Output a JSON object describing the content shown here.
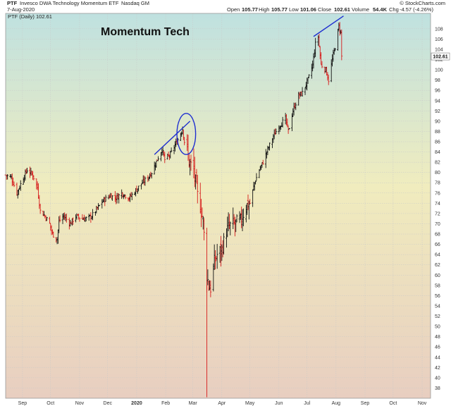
{
  "header": {
    "symbol": "PTF",
    "description": "Invesco DWA Technology Momentum ETF",
    "exchange": "Nasdaq GM",
    "date": "7-Aug-2020",
    "source": "© StockCharts.com",
    "open_label": "Open",
    "open": "105.77",
    "high_label": "High",
    "high": "105.77",
    "low_label": "Low",
    "low": "101.06",
    "close_label": "Close",
    "close": "102.61",
    "volume_label": "Volume",
    "volume": "54.4K",
    "chg_label": "Chg",
    "chg": "-4.57 (-4.26%)",
    "series_label": "PTF (Daily) 102.61"
  },
  "annotation": "Momentum Tech",
  "last_price_badge": "102.61",
  "colors": {
    "up": "#111111",
    "down": "#d61a1a",
    "trendline": "#1f2fd0",
    "bg_top": "#bfe1e0",
    "bg_mid": "#f0ecbe",
    "bg_bottom": "#e8cec0"
  },
  "chart_data": {
    "type": "ohlc",
    "ylim": [
      36,
      111
    ],
    "yticks": [
      38,
      40,
      42,
      44,
      46,
      48,
      50,
      52,
      54,
      56,
      58,
      60,
      62,
      64,
      66,
      68,
      70,
      72,
      74,
      76,
      78,
      80,
      82,
      84,
      86,
      88,
      90,
      92,
      94,
      96,
      98,
      100,
      102,
      104,
      106,
      108
    ],
    "xlim": [
      "2019-08-14",
      "2020-11-10"
    ],
    "grid": true,
    "xticks": [
      {
        "date": "2019-09-01",
        "label": "Sep",
        "bold": false
      },
      {
        "date": "2019-10-01",
        "label": "Oct",
        "bold": false
      },
      {
        "date": "2019-11-01",
        "label": "Nov",
        "bold": false
      },
      {
        "date": "2019-12-01",
        "label": "Dec",
        "bold": false
      },
      {
        "date": "2020-01-01",
        "label": "2020",
        "bold": true
      },
      {
        "date": "2020-02-01",
        "label": "Feb",
        "bold": false
      },
      {
        "date": "2020-03-01",
        "label": "Mar",
        "bold": false
      },
      {
        "date": "2020-04-01",
        "label": "Apr",
        "bold": false
      },
      {
        "date": "2020-05-01",
        "label": "May",
        "bold": false
      },
      {
        "date": "2020-06-01",
        "label": "Jun",
        "bold": false
      },
      {
        "date": "2020-07-01",
        "label": "Jul",
        "bold": false
      },
      {
        "date": "2020-08-01",
        "label": "Aug",
        "bold": false
      },
      {
        "date": "2020-09-01",
        "label": "Sep",
        "bold": false
      },
      {
        "date": "2020-10-01",
        "label": "Oct",
        "bold": false
      },
      {
        "date": "2020-11-01",
        "label": "Nov",
        "bold": false
      }
    ],
    "close_path": [
      [
        "2019-08-14",
        79.5
      ],
      [
        "2019-08-20",
        79.0
      ],
      [
        "2019-08-26",
        76.0
      ],
      [
        "2019-09-02",
        79.0
      ],
      [
        "2019-09-06",
        80.5
      ],
      [
        "2019-09-12",
        79.5
      ],
      [
        "2019-09-17",
        77.0
      ],
      [
        "2019-09-20",
        72.5
      ],
      [
        "2019-09-25",
        71.5
      ],
      [
        "2019-09-30",
        70.0
      ],
      [
        "2019-10-03",
        68.0
      ],
      [
        "2019-10-08",
        67.0
      ],
      [
        "2019-10-10",
        70.5
      ],
      [
        "2019-10-15",
        71.5
      ],
      [
        "2019-10-22",
        70.0
      ],
      [
        "2019-10-28",
        71.5
      ],
      [
        "2019-11-04",
        71.0
      ],
      [
        "2019-11-08",
        71.0
      ],
      [
        "2019-11-14",
        71.5
      ],
      [
        "2019-11-20",
        73.0
      ],
      [
        "2019-11-26",
        74.5
      ],
      [
        "2019-12-04",
        75.5
      ],
      [
        "2019-12-10",
        75.0
      ],
      [
        "2019-12-16",
        76.0
      ],
      [
        "2019-12-24",
        75.0
      ],
      [
        "2019-12-31",
        76.5
      ],
      [
        "2020-01-07",
        78.0
      ],
      [
        "2020-01-13",
        79.0
      ],
      [
        "2020-01-17",
        80.0
      ],
      [
        "2020-01-23",
        82.5
      ],
      [
        "2020-01-28",
        84.5
      ],
      [
        "2020-01-31",
        82.5
      ],
      [
        "2020-02-06",
        83.5
      ],
      [
        "2020-02-10",
        85.0
      ],
      [
        "2020-02-13",
        86.0
      ],
      [
        "2020-02-19",
        88.5
      ],
      [
        "2020-02-21",
        86.0
      ],
      [
        "2020-02-24",
        84.5
      ],
      [
        "2020-02-26",
        82.0
      ],
      [
        "2020-03-02",
        80.5
      ],
      [
        "2020-03-06",
        75.5
      ],
      [
        "2020-03-09",
        73.5
      ],
      [
        "2020-03-12",
        70.5
      ],
      [
        "2020-03-16",
        60.0
      ],
      [
        "2020-03-18",
        58.0
      ],
      [
        "2020-03-20",
        57.5
      ],
      [
        "2020-03-24",
        62.5
      ],
      [
        "2020-03-27",
        64.0
      ],
      [
        "2020-04-01",
        65.0
      ],
      [
        "2020-04-06",
        68.5
      ],
      [
        "2020-04-09",
        69.5
      ],
      [
        "2020-04-15",
        70.0
      ],
      [
        "2020-04-21",
        70.5
      ],
      [
        "2020-04-27",
        73.5
      ],
      [
        "2020-05-01",
        74.0
      ],
      [
        "2020-05-06",
        78.0
      ],
      [
        "2020-05-11",
        80.5
      ],
      [
        "2020-05-15",
        82.0
      ],
      [
        "2020-05-20",
        84.5
      ],
      [
        "2020-05-26",
        87.0
      ],
      [
        "2020-06-01",
        89.0
      ],
      [
        "2020-06-08",
        90.5
      ],
      [
        "2020-06-11",
        88.0
      ],
      [
        "2020-06-16",
        92.0
      ],
      [
        "2020-06-22",
        95.0
      ],
      [
        "2020-06-26",
        95.5
      ],
      [
        "2020-07-02",
        98.0
      ],
      [
        "2020-07-07",
        101.0
      ],
      [
        "2020-07-10",
        105.0
      ],
      [
        "2020-07-13",
        106.5
      ],
      [
        "2020-07-16",
        101.0
      ],
      [
        "2020-07-21",
        100.0
      ],
      [
        "2020-07-24",
        98.0
      ],
      [
        "2020-07-28",
        102.0
      ],
      [
        "2020-07-31",
        104.5
      ],
      [
        "2020-08-04",
        108.5
      ],
      [
        "2020-08-06",
        107.2
      ],
      [
        "2020-08-07",
        102.61
      ]
    ],
    "spike_lows": [
      [
        "2020-03-16",
        36.2
      ]
    ],
    "trendlines": [
      {
        "from": [
          "2020-01-20",
          83.5
        ],
        "to": [
          "2020-02-27",
          90.0
        ]
      },
      {
        "from": [
          "2020-07-08",
          106.5
        ],
        "to": [
          "2020-08-09",
          110.5
        ]
      }
    ],
    "highlight_circle": {
      "center": [
        "2020-02-23",
        87.5
      ],
      "rx_days": 10,
      "ry_units": 4
    }
  }
}
